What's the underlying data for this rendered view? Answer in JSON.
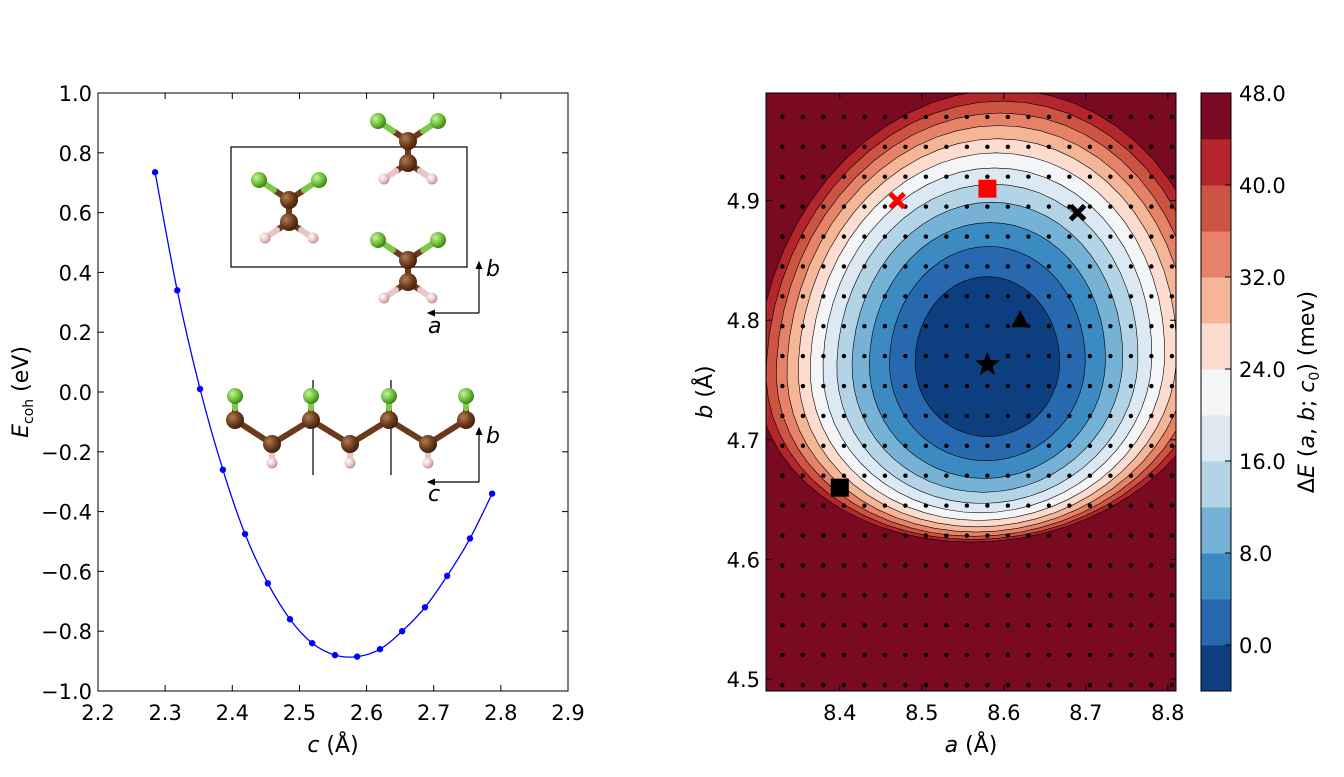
{
  "chart_data": [
    {
      "type": "line",
      "xlabel": "c (Å)",
      "ylabel": "E_coh (eV)",
      "xlim": [
        2.2,
        2.9
      ],
      "ylim": [
        -1.0,
        1.0
      ],
      "xticks": [
        "2.2",
        "2.3",
        "2.4",
        "2.5",
        "2.6",
        "2.7",
        "2.8",
        "2.9"
      ],
      "yticks": [
        "−1.0",
        "−0.8",
        "−0.6",
        "−0.4",
        "−0.2",
        "0.0",
        "0.2",
        "0.4",
        "0.6",
        "0.8",
        "1.0"
      ],
      "line_color": "#0000ff",
      "series": [
        {
          "x": [
            2.285,
            2.318,
            2.352,
            2.386,
            2.419,
            2.453,
            2.486,
            2.519,
            2.553,
            2.586,
            2.62,
            2.653,
            2.687,
            2.72,
            2.754,
            2.787
          ],
          "values": [
            0.735,
            0.34,
            0.01,
            -0.26,
            -0.475,
            -0.64,
            -0.76,
            -0.84,
            -0.88,
            -0.885,
            -0.86,
            -0.8,
            -0.72,
            -0.615,
            -0.49,
            -0.34
          ]
        }
      ],
      "insets": {
        "top": {
          "labels": [
            "b",
            "a"
          ]
        },
        "bottom": {
          "labels": [
            "b",
            "c"
          ]
        }
      }
    },
    {
      "type": "heatmap",
      "xlabel": "a (Å)",
      "ylabel": "b (Å)",
      "xlim": [
        8.31,
        8.81
      ],
      "ylim": [
        4.49,
        4.99
      ],
      "xticks": [
        "8.4",
        "8.5",
        "8.6",
        "8.7",
        "8.8"
      ],
      "yticks": [
        "4.5",
        "4.6",
        "4.7",
        "4.8",
        "4.9"
      ],
      "colorbar": {
        "label": "ΔE (a, b; c0) (mev)",
        "ticks": [
          "0.0",
          "8.0",
          "16.0",
          "24.0",
          "32.0",
          "40.0",
          "48.0"
        ],
        "min": -4,
        "max": 48,
        "step": 4,
        "colors": [
          "#0d3f80",
          "#2868af",
          "#3c8ac2",
          "#76b1d6",
          "#b3d4e7",
          "#dce9f2",
          "#f4f5f6",
          "#fbdccf",
          "#f5b597",
          "#e58268",
          "#cd5443",
          "#b5252c",
          "#7a0a22"
        ]
      },
      "minimum": {
        "a": 8.58,
        "b": 4.765
      },
      "grid_points": {
        "a_start": 8.33,
        "a_step": 0.025,
        "b_start": 4.495,
        "b_step": 0.025
      },
      "markers": [
        {
          "shape": "x",
          "color": "#ff0000",
          "a": 8.47,
          "b": 4.9
        },
        {
          "shape": "square",
          "color": "#ff0000",
          "a": 8.58,
          "b": 4.91
        },
        {
          "shape": "x",
          "color": "#000000",
          "a": 8.69,
          "b": 4.89
        },
        {
          "shape": "triangle",
          "color": "#000000",
          "a": 8.62,
          "b": 4.8
        },
        {
          "shape": "star",
          "color": "#000000",
          "a": 8.58,
          "b": 4.763
        },
        {
          "shape": "square",
          "color": "#000000",
          "a": 8.4,
          "b": 4.66
        }
      ]
    }
  ]
}
